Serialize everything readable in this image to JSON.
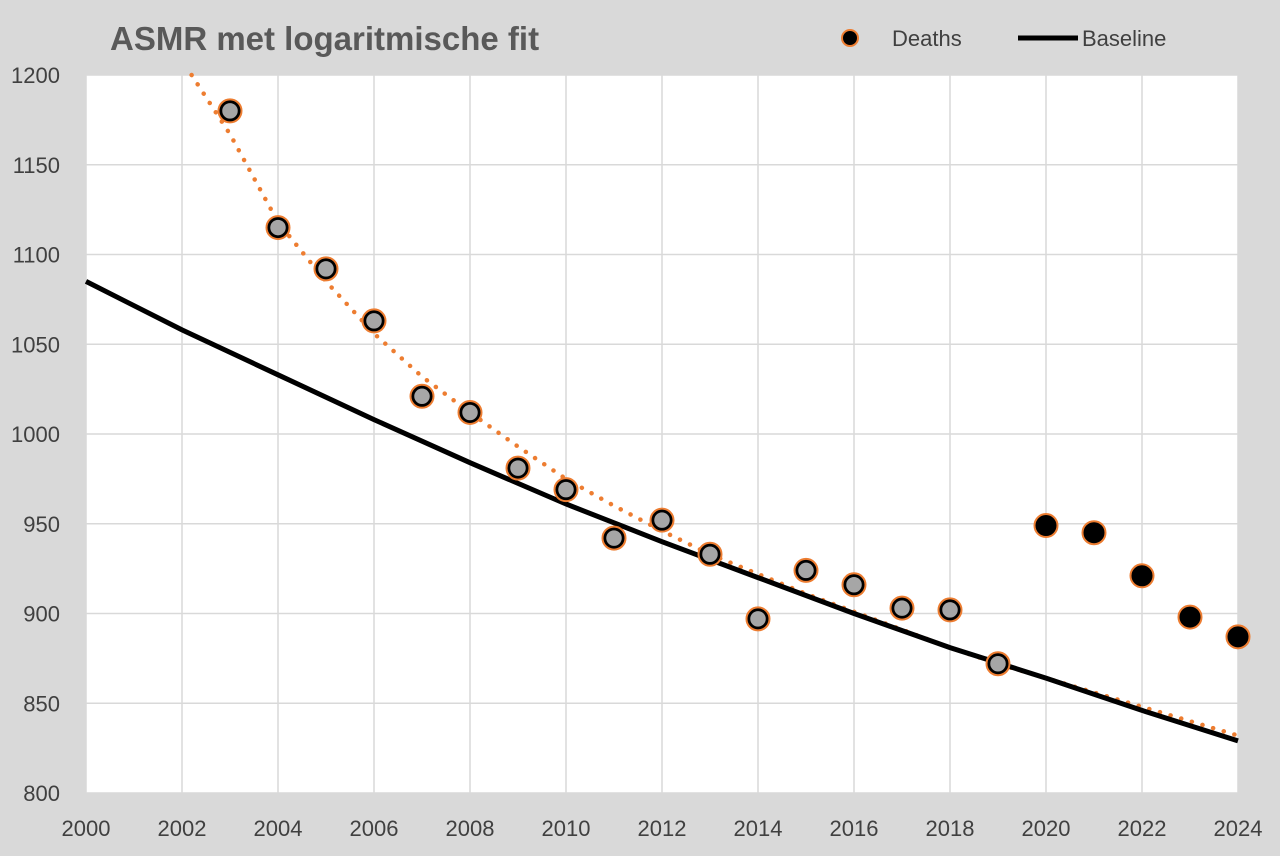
{
  "chart_data": {
    "type": "scatter",
    "title": "ASMR met logaritmische fit",
    "xlabel": "",
    "ylabel": "",
    "xlim": [
      2000,
      2024
    ],
    "ylim": [
      800,
      1200
    ],
    "x_ticks": [
      "2000",
      "2002",
      "2004",
      "2006",
      "2008",
      "2010",
      "2012",
      "2014",
      "2016",
      "2018",
      "2020",
      "2022",
      "2024"
    ],
    "y_ticks": [
      "800",
      "850",
      "900",
      "950",
      "1000",
      "1050",
      "1100",
      "1150",
      "1200"
    ],
    "grid": true,
    "legend_position": "top-right",
    "legend": [
      "Deaths",
      "Baseline"
    ],
    "colors": {
      "point_outline": "#ed7d31",
      "point_fill_fit": "#a6a6a6",
      "point_fill_excess": "#000000",
      "baseline": "#000000",
      "fit_line": "#ed7d31",
      "background": "#d9d9d9",
      "plot_area": "#ffffff",
      "grid": "#d9d9d9"
    },
    "series": [
      {
        "name": "Deaths",
        "type": "scatter",
        "points": [
          {
            "x": 2003,
            "y": 1180,
            "group": "fit"
          },
          {
            "x": 2004,
            "y": 1115,
            "group": "fit"
          },
          {
            "x": 2005,
            "y": 1092,
            "group": "fit"
          },
          {
            "x": 2006,
            "y": 1063,
            "group": "fit"
          },
          {
            "x": 2007,
            "y": 1021,
            "group": "fit"
          },
          {
            "x": 2008,
            "y": 1012,
            "group": "fit"
          },
          {
            "x": 2009,
            "y": 981,
            "group": "fit"
          },
          {
            "x": 2010,
            "y": 969,
            "group": "fit"
          },
          {
            "x": 2011,
            "y": 942,
            "group": "fit"
          },
          {
            "x": 2012,
            "y": 952,
            "group": "fit"
          },
          {
            "x": 2013,
            "y": 933,
            "group": "fit"
          },
          {
            "x": 2014,
            "y": 897,
            "group": "fit"
          },
          {
            "x": 2015,
            "y": 924,
            "group": "fit"
          },
          {
            "x": 2016,
            "y": 916,
            "group": "fit"
          },
          {
            "x": 2017,
            "y": 903,
            "group": "fit"
          },
          {
            "x": 2018,
            "y": 902,
            "group": "fit"
          },
          {
            "x": 2019,
            "y": 872,
            "group": "fit"
          },
          {
            "x": 2020,
            "y": 949,
            "group": "excess"
          },
          {
            "x": 2021,
            "y": 945,
            "group": "excess"
          },
          {
            "x": 2022,
            "y": 921,
            "group": "excess"
          },
          {
            "x": 2023,
            "y": 898,
            "group": "excess"
          },
          {
            "x": 2024,
            "y": 887,
            "group": "excess"
          }
        ]
      },
      {
        "name": "Baseline",
        "type": "line",
        "x": [
          2000,
          2002,
          2004,
          2006,
          2008,
          2010,
          2012,
          2014,
          2016,
          2018,
          2020,
          2022,
          2024
        ],
        "y": [
          1085,
          1058,
          1033,
          1008,
          984,
          961,
          940,
          920,
          900,
          881,
          864,
          846,
          829
        ]
      },
      {
        "type": "line",
        "style": "dotted",
        "x": [
          2002.2,
          2003,
          2004,
          2005,
          2006,
          2007,
          2008,
          2009,
          2010,
          2011,
          2012,
          2013,
          2014,
          2015,
          2016,
          2017,
          2018,
          2019,
          2020,
          2021,
          2022,
          2023,
          2024
        ],
        "y": [
          1200,
          1167,
          1118,
          1085,
          1056,
          1032,
          1012,
          993,
          975,
          960,
          946,
          933,
          922,
          911,
          901,
          891,
          881,
          872,
          864,
          856,
          848,
          840,
          832
        ]
      }
    ]
  }
}
